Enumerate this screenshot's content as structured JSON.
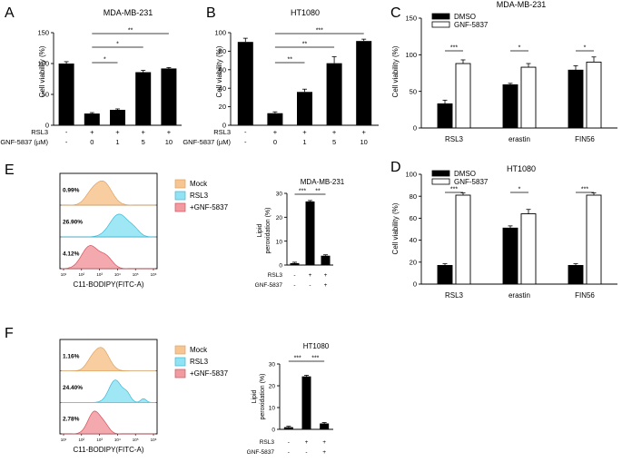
{
  "panels": [
    {
      "letter": "A",
      "chart_data": {
        "type": "bar",
        "title": "MDA-MB-231",
        "ylabel": "Cell viability (%)",
        "ylim": [
          0,
          150
        ],
        "yticks": [
          "0",
          "50",
          "100",
          "150"
        ],
        "values": [
          100,
          19,
          25,
          86,
          92
        ],
        "errors": [
          3,
          1.5,
          1.5,
          3,
          0.8
        ],
        "rows": [
          {
            "label": "RSL3",
            "cells": [
              "-",
              "+",
              "+",
              "+",
              "+"
            ]
          },
          {
            "label": "GNF-5837 (µM)",
            "cells": [
              "-",
              "0",
              "1",
              "5",
              "10"
            ]
          }
        ],
        "sig": [
          {
            "from": 1,
            "to": 2,
            "label": "*"
          },
          {
            "from": 1,
            "to": 3,
            "label": "*"
          },
          {
            "from": 1,
            "to": 4,
            "label": "**"
          }
        ]
      }
    },
    {
      "letter": "B",
      "chart_data": {
        "type": "bar",
        "title": "HT1080",
        "ylabel": "Cell viability (%)",
        "ylim": [
          0,
          100
        ],
        "yticks": [
          "0",
          "20",
          "40",
          "60",
          "80",
          "100"
        ],
        "values": [
          90,
          13,
          36,
          67,
          91
        ],
        "errors": [
          4,
          1.5,
          3,
          7,
          2
        ],
        "rows": [
          {
            "label": "RSL3",
            "cells": [
              "-",
              "+",
              "+",
              "+",
              "+"
            ]
          },
          {
            "label": "GNF-5837 (µM)",
            "cells": [
              "-",
              "0",
              "1",
              "5",
              "10"
            ]
          }
        ],
        "sig": [
          {
            "from": 1,
            "to": 2,
            "label": "**"
          },
          {
            "from": 1,
            "to": 3,
            "label": "**"
          },
          {
            "from": 1,
            "to": 4,
            "label": "***"
          }
        ]
      }
    },
    {
      "letter": "C",
      "chart_data": {
        "type": "bar",
        "title": "MDA-MB-231",
        "ylabel": "Cell viability (%)",
        "ylim": [
          0,
          150
        ],
        "yticks": [
          "0",
          "50",
          "100",
          "150"
        ],
        "categories": [
          "RSL3",
          "erastin",
          "FIN56"
        ],
        "series": [
          {
            "name": "DMSO",
            "values": [
              33,
              59,
              79
            ],
            "errors": [
              5,
              2,
              6
            ]
          },
          {
            "name": "GNF-5837",
            "values": [
              88,
              83,
              90
            ],
            "errors": [
              5,
              5,
              7
            ]
          }
        ],
        "sig": [
          "***",
          "*",
          "*"
        ]
      }
    },
    {
      "letter": "D",
      "chart_data": {
        "type": "bar",
        "title": "HT1080",
        "ylabel": "Cell viability (%)",
        "ylim": [
          0,
          100
        ],
        "yticks": [
          "0",
          "20",
          "40",
          "60",
          "80",
          "100"
        ],
        "categories": [
          "RSL3",
          "erastin",
          "FIN56"
        ],
        "series": [
          {
            "name": "DMSO",
            "values": [
              17,
              51,
              17
            ],
            "errors": [
              1.5,
              2,
              1.5
            ]
          },
          {
            "name": "GNF-5837",
            "values": [
              81,
              64,
              81
            ],
            "errors": [
              2,
              4,
              2
            ]
          }
        ],
        "sig": [
          "***",
          "*",
          "***"
        ]
      }
    },
    {
      "letter": "E",
      "flow": {
        "legend": [
          "Mock",
          "RSL3",
          "+GNF-5837"
        ],
        "percents": [
          "0.99%",
          "26.90%",
          "4.12%"
        ],
        "xticks": [
          "10¹",
          "10²",
          "10³",
          "10⁴",
          "10⁵",
          "10⁶"
        ],
        "xlabel": "C11-BODIPY(FITC-A)"
      },
      "chart_data": {
        "type": "bar",
        "title": "MDA-MB-231",
        "ylabel": "Lipid\nperoxidation (%)",
        "ylim": [
          0,
          30
        ],
        "yticks": [
          "0",
          "10",
          "20",
          "30"
        ],
        "values": [
          0.8,
          26.6,
          3.9
        ],
        "errors": [
          0.2,
          0.4,
          0.3
        ],
        "rows": [
          {
            "label": "RSL3",
            "cells": [
              "-",
              "+",
              "+"
            ]
          },
          {
            "label": "GNF-5837",
            "cells": [
              "-",
              "-",
              "+"
            ]
          }
        ],
        "sig": [
          {
            "from": 0,
            "to": 1,
            "label": "***"
          },
          {
            "from": 1,
            "to": 2,
            "label": "**"
          }
        ]
      }
    },
    {
      "letter": "F",
      "flow": {
        "legend": [
          "Mock",
          "RSL3",
          "+GNF-5837"
        ],
        "percents": [
          "1.16%",
          "24.40%",
          "2.78%"
        ],
        "xticks": [
          "10¹",
          "10²",
          "10³",
          "10⁴",
          "10⁵",
          "10⁶"
        ],
        "xlabel": "C11-BODIPY(FITC-A)"
      },
      "chart_data": {
        "type": "bar",
        "title": "HT1080",
        "ylabel": "Lipid\nperoxidation (%)",
        "ylim": [
          0,
          30
        ],
        "yticks": [
          "0",
          "10",
          "20",
          "30"
        ],
        "values": [
          1.0,
          24.3,
          2.7
        ],
        "errors": [
          0.2,
          0.5,
          0.3
        ],
        "rows": [
          {
            "label": "RSL3",
            "cells": [
              "-",
              "+",
              "+"
            ]
          },
          {
            "label": "GNF-5837",
            "cells": [
              "-",
              "-",
              "+"
            ]
          }
        ],
        "sig": [
          {
            "from": 0,
            "to": 1,
            "label": "***"
          },
          {
            "from": 1,
            "to": 2,
            "label": "***"
          }
        ]
      }
    }
  ],
  "colors": {
    "mock": "#f7c591",
    "mock_stroke": "#e0a05c",
    "rsl3": "#8fe3f4",
    "rsl3_stroke": "#3fb7d2",
    "gnf": "#f19aa0",
    "gnf_stroke": "#d44f5a",
    "bar": "#000000"
  }
}
